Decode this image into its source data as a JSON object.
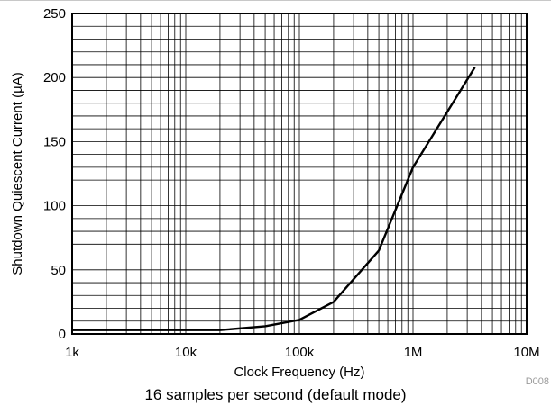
{
  "chart_data": {
    "type": "line",
    "x_scale": "log",
    "xlim": [
      1000,
      10000000
    ],
    "ylim": [
      0,
      250
    ],
    "x_ticks": [
      1000,
      10000,
      100000,
      1000000,
      10000000
    ],
    "x_tick_labels": [
      "1k",
      "10k",
      "100k",
      "1M",
      "10M"
    ],
    "y_ticks": [
      0,
      50,
      100,
      150,
      200,
      250
    ],
    "y_tick_labels": [
      "0",
      "50",
      "100",
      "150",
      "200",
      "250"
    ],
    "xlabel": "Clock Frequency (Hz)",
    "ylabel": "Shutdown Quiescent Current (µA)",
    "grid": true,
    "series": [
      {
        "x": [
          1000,
          20000,
          50000,
          100000,
          200000,
          500000,
          1000000,
          3500000
        ],
        "y": [
          3,
          3,
          6,
          11,
          25,
          65,
          130,
          208
        ]
      }
    ],
    "figure_id": "D008",
    "caption": "16 samples per second (default mode)"
  }
}
